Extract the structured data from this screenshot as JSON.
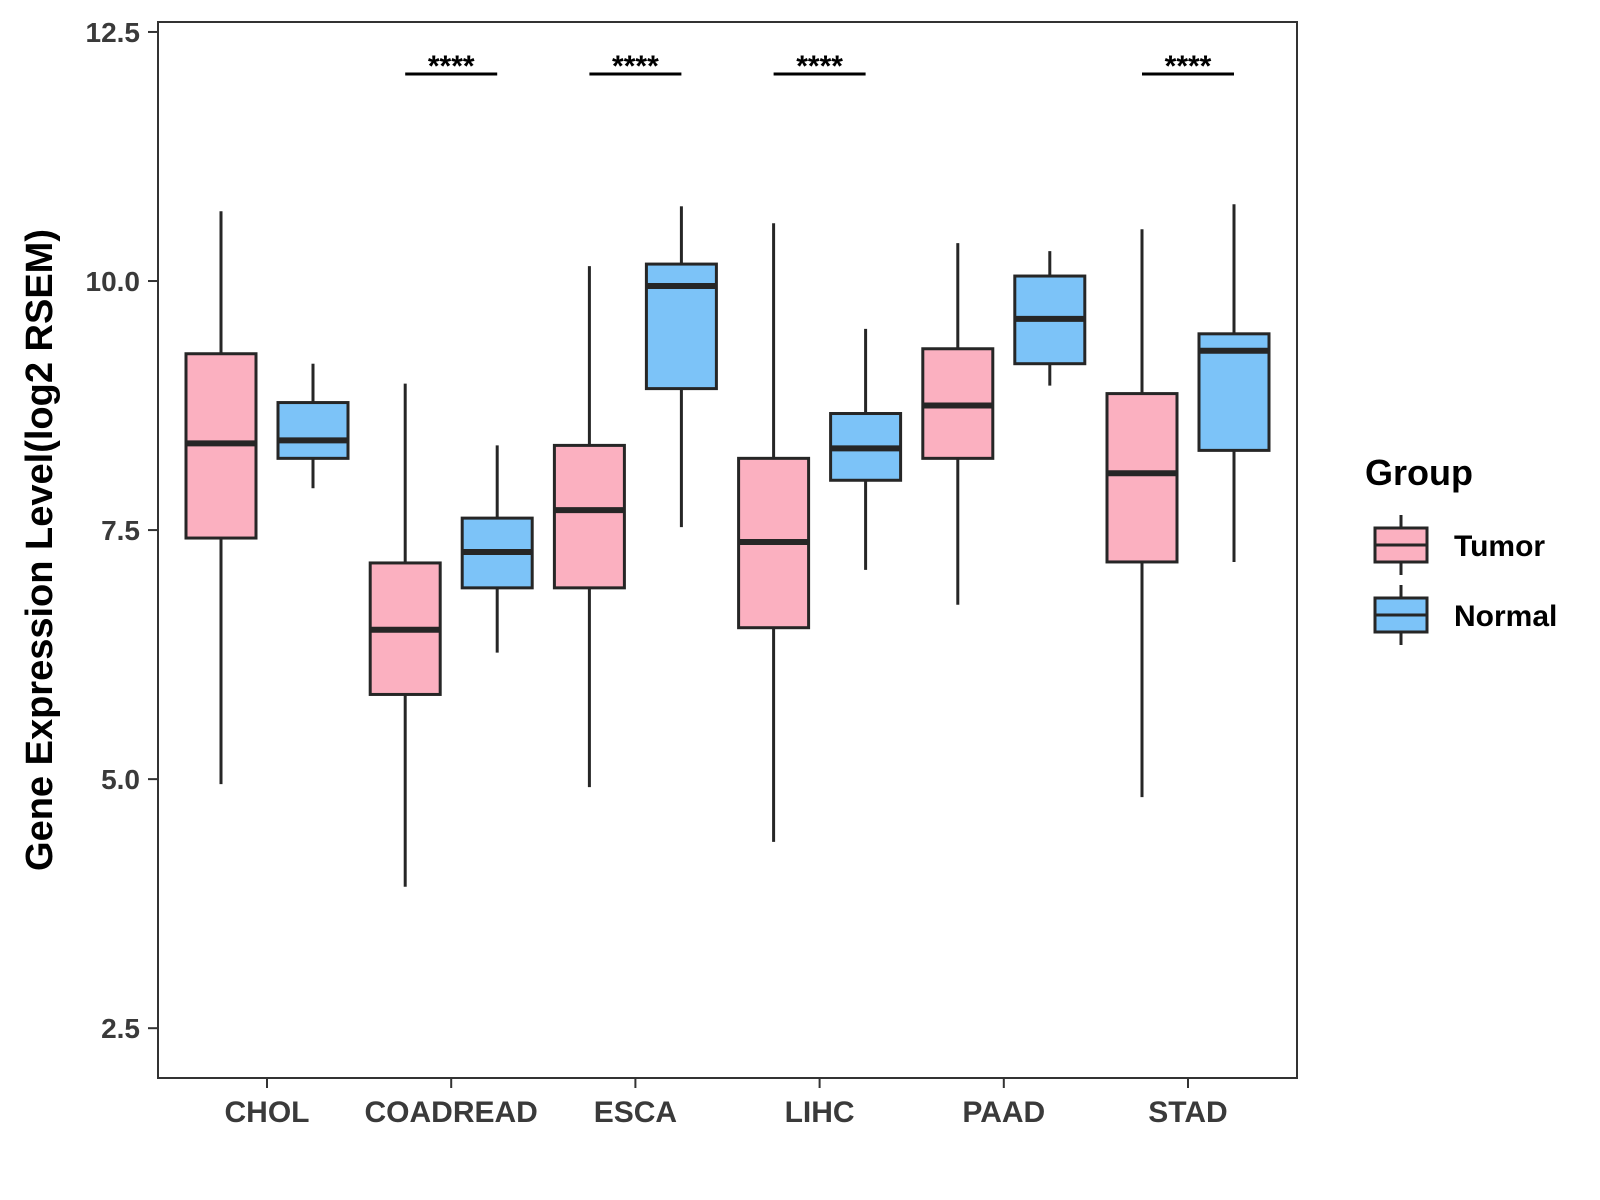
{
  "chart_data": {
    "type": "boxplot",
    "ylabel": "Gene Expression Level(log2 RSEM)",
    "xlabel": "",
    "ylim": [
      2,
      12.6
    ],
    "yticks": [
      2.5,
      5.0,
      7.5,
      10.0,
      12.5
    ],
    "ytick_labels": [
      "2.5",
      "5.0",
      "7.5",
      "10.0",
      "12.5"
    ],
    "categories": [
      "CHOL",
      "COADREAD",
      "ESCA",
      "LIHC",
      "PAAD",
      "STAD"
    ],
    "series": [
      {
        "name": "Tumor",
        "color": "#FBB0C0",
        "boxes": [
          {
            "min": 4.95,
            "q1": 7.42,
            "median": 8.37,
            "q3": 9.27,
            "max": 10.7
          },
          {
            "min": 3.92,
            "q1": 5.85,
            "median": 6.5,
            "q3": 7.17,
            "max": 8.97
          },
          {
            "min": 4.92,
            "q1": 6.92,
            "median": 7.7,
            "q3": 8.35,
            "max": 10.15
          },
          {
            "min": 4.37,
            "q1": 6.52,
            "median": 7.38,
            "q3": 8.22,
            "max": 10.58
          },
          {
            "min": 6.75,
            "q1": 8.22,
            "median": 8.75,
            "q3": 9.32,
            "max": 10.38
          },
          {
            "min": 4.82,
            "q1": 7.18,
            "median": 8.07,
            "q3": 8.87,
            "max": 10.52
          }
        ]
      },
      {
        "name": "Normal",
        "color": "#7CC3F8",
        "boxes": [
          {
            "min": 7.92,
            "q1": 8.22,
            "median": 8.4,
            "q3": 8.78,
            "max": 9.17
          },
          {
            "min": 6.27,
            "q1": 6.92,
            "median": 7.28,
            "q3": 7.62,
            "max": 8.35
          },
          {
            "min": 7.53,
            "q1": 8.92,
            "median": 9.95,
            "q3": 10.17,
            "max": 10.75
          },
          {
            "min": 7.1,
            "q1": 8.0,
            "median": 8.32,
            "q3": 8.67,
            "max": 9.52
          },
          {
            "min": 8.95,
            "q1": 9.17,
            "median": 9.62,
            "q3": 10.05,
            "max": 10.3
          },
          {
            "min": 7.18,
            "q1": 8.3,
            "median": 9.3,
            "q3": 9.47,
            "max": 10.77
          }
        ]
      }
    ],
    "significance": [
      {
        "category": "COADREAD",
        "label": "****"
      },
      {
        "category": "ESCA",
        "label": "****"
      },
      {
        "category": "LIHC",
        "label": "****"
      },
      {
        "category": "STAD",
        "label": "****"
      }
    ],
    "legend": {
      "title": "Group",
      "position": "right",
      "items": [
        "Tumor",
        "Normal"
      ]
    },
    "grid": false
  }
}
